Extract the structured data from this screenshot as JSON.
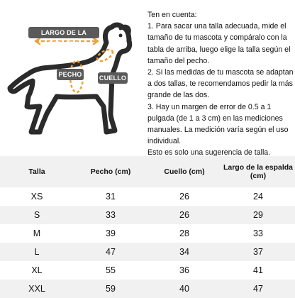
{
  "illustration": {
    "label_back": "LARGO DE LA ESPALDA",
    "label_chest": "PECHO",
    "label_neck": "CUELLO",
    "accent_color": "#f0a030",
    "label_bg_color": "#5a5a5a"
  },
  "notes": {
    "heading": "Ten en cuenta:",
    "items": [
      "1. Para sacar una talla adecuada, mide el tamaño de tu mascota y compáralo con la tabla de arriba, luego elige la talla según el tamaño del pecho.",
      "2. Si las medidas de tu mascota se adaptan a dos tallas, te recomendamos pedir la más grande de las dos.",
      "3. Hay un margen de error de 0.5 a 1 pulgada (de 1 a 3 cm) en las mediciones manuales. La medición varía según el uso individual.",
      "Esto es solo una sugerencia de talla."
    ]
  },
  "table": {
    "headers": [
      "Talla",
      "Pecho (cm)",
      "Cuello (cm)",
      "Largo de la espalda (cm)"
    ],
    "rows": [
      [
        "XS",
        "31",
        "26",
        "24"
      ],
      [
        "S",
        "33",
        "26",
        "29"
      ],
      [
        "M",
        "39",
        "28",
        "33"
      ],
      [
        "L",
        "47",
        "34",
        "37"
      ],
      [
        "XL",
        "55",
        "36",
        "41"
      ],
      [
        "XXL",
        "59",
        "40",
        "47"
      ]
    ]
  }
}
